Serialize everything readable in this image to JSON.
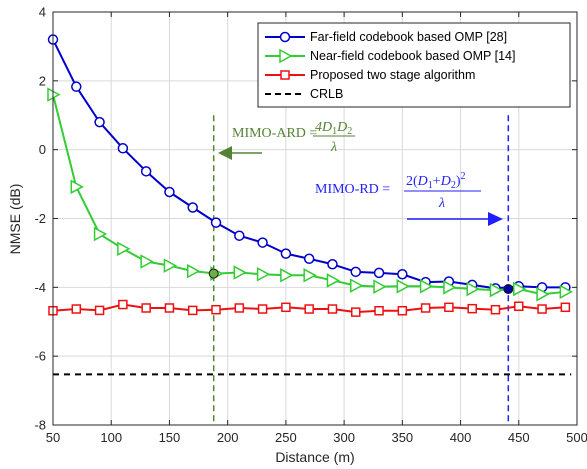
{
  "chart_data": {
    "type": "line",
    "xlabel": "Distance (m)",
    "ylabel": "NMSE (dB)",
    "xlim": [
      50,
      500
    ],
    "ylim": [
      -8,
      4
    ],
    "xticks": [
      50,
      100,
      150,
      200,
      250,
      300,
      350,
      400,
      450,
      500
    ],
    "yticks": [
      -8,
      -6,
      -4,
      -2,
      0,
      2,
      4
    ],
    "grid": true,
    "legend_position": "top-right",
    "series": [
      {
        "name": "Far-field codebook based OMP [28]",
        "color": "#0000cc",
        "marker": "circle",
        "x": [
          50,
          70,
          90,
          110,
          130,
          150,
          170,
          190,
          210,
          230,
          250,
          270,
          290,
          310,
          330,
          350,
          370,
          390,
          410,
          430,
          450,
          470,
          490
        ],
        "y": [
          3.2,
          1.83,
          0.8,
          0.04,
          -0.63,
          -1.23,
          -1.68,
          -2.12,
          -2.5,
          -2.7,
          -3.02,
          -3.17,
          -3.33,
          -3.55,
          -3.58,
          -3.62,
          -3.85,
          -3.83,
          -3.93,
          -4.03,
          -3.97,
          -4.0,
          -4.0
        ]
      },
      {
        "name": "Near-field codebook based OMP [14]",
        "color": "#33cc33",
        "marker": "triangle-right",
        "x": [
          50,
          70,
          90,
          110,
          130,
          150,
          170,
          190,
          210,
          230,
          250,
          270,
          290,
          310,
          330,
          350,
          370,
          390,
          410,
          430,
          450,
          470,
          490
        ],
        "y": [
          1.6,
          -1.08,
          -2.45,
          -2.88,
          -3.25,
          -3.37,
          -3.53,
          -3.6,
          -3.57,
          -3.62,
          -3.65,
          -3.65,
          -3.8,
          -3.95,
          -3.98,
          -3.97,
          -3.97,
          -4.0,
          -4.05,
          -4.08,
          -4.05,
          -4.2,
          -4.13
        ]
      },
      {
        "name": "Proposed two stage algorithm",
        "color": "#ee1111",
        "marker": "square",
        "x": [
          50,
          70,
          90,
          110,
          130,
          150,
          170,
          190,
          210,
          230,
          250,
          270,
          290,
          310,
          330,
          350,
          370,
          390,
          410,
          430,
          450,
          470,
          490
        ],
        "y": [
          -4.68,
          -4.63,
          -4.67,
          -4.5,
          -4.6,
          -4.6,
          -4.67,
          -4.65,
          -4.6,
          -4.63,
          -4.58,
          -4.63,
          -4.63,
          -4.72,
          -4.68,
          -4.68,
          -4.6,
          -4.58,
          -4.62,
          -4.65,
          -4.55,
          -4.63,
          -4.58
        ]
      },
      {
        "name": "CRLB",
        "color": "#000000",
        "marker": "none",
        "dashed": true,
        "x": [
          50,
          495
        ],
        "y": [
          -6.53,
          -6.53
        ]
      }
    ],
    "vlines": [
      {
        "x": 188,
        "color": "#548235"
      },
      {
        "x": 441,
        "color": "#1f1fff"
      }
    ],
    "points": [
      {
        "x": 188,
        "y": -3.6,
        "color": "#70ad47"
      },
      {
        "x": 441,
        "y": -4.05,
        "color": "#0000aa"
      }
    ],
    "annotations": {
      "ard": {
        "prefix": "MIMO-ARD =",
        "numerator": "4D1D2",
        "denominator": "λ",
        "color": "#548235"
      },
      "rd": {
        "prefix": "MIMO-RD =",
        "numerator": "2(D1+D2)2",
        "denominator": "λ",
        "color": "#1f1fff"
      }
    }
  }
}
